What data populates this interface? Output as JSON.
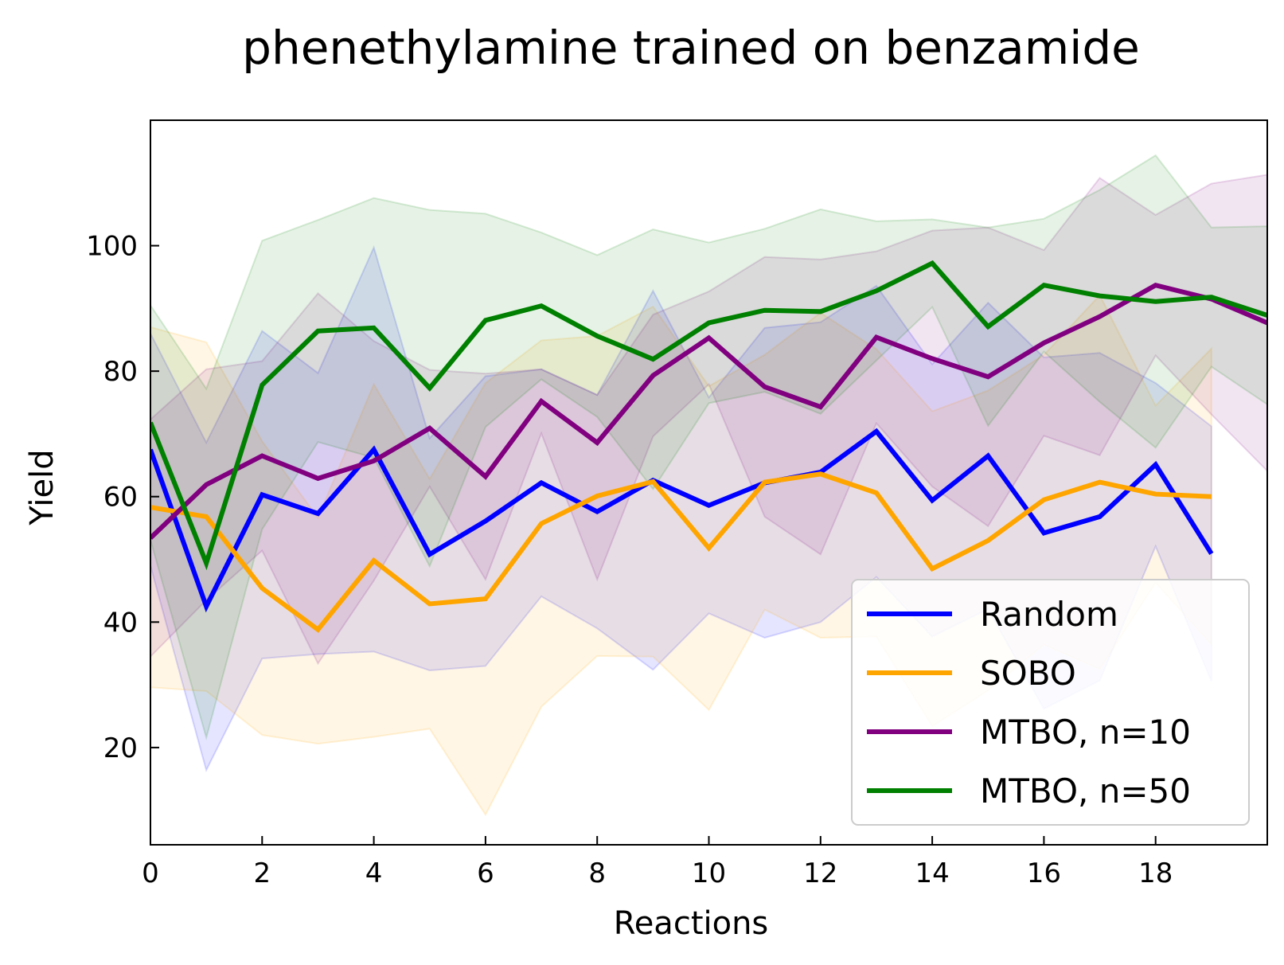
{
  "chart_data": {
    "type": "line",
    "title": "phenethylamine trained on benzamide",
    "xlabel": "Reactions",
    "ylabel": "Yield",
    "xlim": [
      0,
      20
    ],
    "ylim": [
      4.5,
      120
    ],
    "xticks": [
      0,
      2,
      4,
      6,
      8,
      10,
      12,
      14,
      16,
      18
    ],
    "yticks": [
      20,
      40,
      60,
      80,
      100
    ],
    "grid": false,
    "legend_position": "lower right",
    "series": [
      {
        "name": "Random",
        "color": "#0000ff",
        "x": [
          0,
          1,
          2,
          3,
          4,
          5,
          6,
          7,
          8,
          9,
          10,
          11,
          12,
          13,
          14,
          15,
          16,
          17,
          18,
          19
        ],
        "y": [
          67.5,
          42.5,
          60.3,
          57.3,
          67.5,
          50.8,
          56.1,
          62.2,
          57.6,
          62.6,
          58.6,
          62.2,
          63.9,
          70.4,
          59.4,
          66.5,
          54.2,
          56.8,
          65.1,
          50.9
        ],
        "upper": [
          86.0,
          68.6,
          86.4,
          79.7,
          99.7,
          69.3,
          79.2,
          80.3,
          76.2,
          92.8,
          75.8,
          86.9,
          87.8,
          93.6,
          81.1,
          90.9,
          82.2,
          82.9,
          78.1,
          71.2
        ],
        "lower": [
          49.0,
          16.4,
          34.2,
          34.9,
          35.3,
          32.3,
          33.0,
          44.1,
          39.0,
          32.4,
          41.4,
          37.5,
          40.0,
          47.2,
          37.7,
          42.1,
          26.2,
          30.7,
          52.1,
          30.6
        ]
      },
      {
        "name": "SOBO",
        "color": "#ffa500",
        "x": [
          0,
          1,
          2,
          3,
          4,
          5,
          6,
          7,
          8,
          9,
          10,
          11,
          12,
          13,
          14,
          15,
          16,
          17,
          18,
          19
        ],
        "y": [
          58.3,
          56.8,
          45.4,
          38.8,
          49.8,
          42.9,
          43.7,
          55.7,
          60.1,
          62.4,
          51.8,
          62.3,
          63.6,
          60.6,
          48.5,
          53.0,
          59.5,
          62.3,
          60.4,
          60.0
        ],
        "upper": [
          87.0,
          84.6,
          68.8,
          56.6,
          77.9,
          62.8,
          78.1,
          84.9,
          85.6,
          90.3,
          77.6,
          82.6,
          89.3,
          83.5,
          73.6,
          76.9,
          82.6,
          92.1,
          74.5,
          83.6
        ],
        "lower": [
          29.6,
          29.0,
          22.0,
          20.6,
          21.7,
          23.0,
          9.3,
          26.5,
          34.6,
          34.5,
          26.0,
          42.0,
          37.5,
          37.7,
          23.4,
          29.1,
          36.4,
          32.5,
          46.3,
          36.4
        ]
      },
      {
        "name": "MTBO, n=10",
        "color": "#800080",
        "x": [
          0,
          1,
          2,
          3,
          4,
          5,
          6,
          7,
          8,
          9,
          10,
          11,
          12,
          13,
          14,
          15,
          16,
          17,
          18,
          19,
          20
        ],
        "y": [
          53.4,
          61.9,
          66.5,
          62.9,
          65.7,
          70.9,
          63.2,
          75.2,
          68.6,
          79.3,
          85.3,
          77.5,
          74.3,
          85.4,
          82.0,
          79.1,
          84.5,
          88.7,
          93.7,
          91.5,
          87.7
        ],
        "upper": [
          72.3,
          80.3,
          81.6,
          92.4,
          84.8,
          80.2,
          79.6,
          80.3,
          76.2,
          89.0,
          92.7,
          98.2,
          97.8,
          99.1,
          102.4,
          102.9,
          99.3,
          110.8,
          104.9,
          109.9,
          111.3
        ],
        "lower": [
          34.5,
          43.5,
          51.4,
          33.4,
          46.6,
          61.6,
          46.8,
          70.1,
          46.8,
          69.6,
          77.9,
          56.8,
          50.8,
          71.7,
          61.6,
          55.3,
          69.7,
          66.6,
          82.5,
          73.1,
          64.1
        ]
      },
      {
        "name": "MTBO, n=50",
        "color": "#008000",
        "x": [
          0,
          1,
          2,
          3,
          4,
          5,
          6,
          7,
          8,
          9,
          10,
          11,
          12,
          13,
          14,
          15,
          16,
          17,
          18,
          19,
          20
        ],
        "y": [
          71.8,
          49.4,
          77.8,
          86.4,
          86.9,
          77.3,
          88.1,
          90.4,
          85.6,
          81.9,
          87.7,
          89.7,
          89.5,
          92.8,
          97.2,
          87.1,
          93.7,
          92.0,
          91.1,
          91.8,
          88.9
        ],
        "upper": [
          90.5,
          77.2,
          100.8,
          104.1,
          107.6,
          105.7,
          105.1,
          102.1,
          98.5,
          102.6,
          100.5,
          102.7,
          105.8,
          103.9,
          104.2,
          102.9,
          104.3,
          108.9,
          114.4,
          102.9,
          103.1
        ],
        "lower": [
          53.1,
          21.6,
          54.8,
          68.7,
          66.2,
          48.9,
          71.1,
          78.7,
          72.7,
          61.2,
          74.9,
          76.7,
          73.2,
          81.7,
          90.2,
          71.3,
          83.1,
          75.1,
          67.8,
          80.7,
          74.7
        ]
      }
    ]
  }
}
